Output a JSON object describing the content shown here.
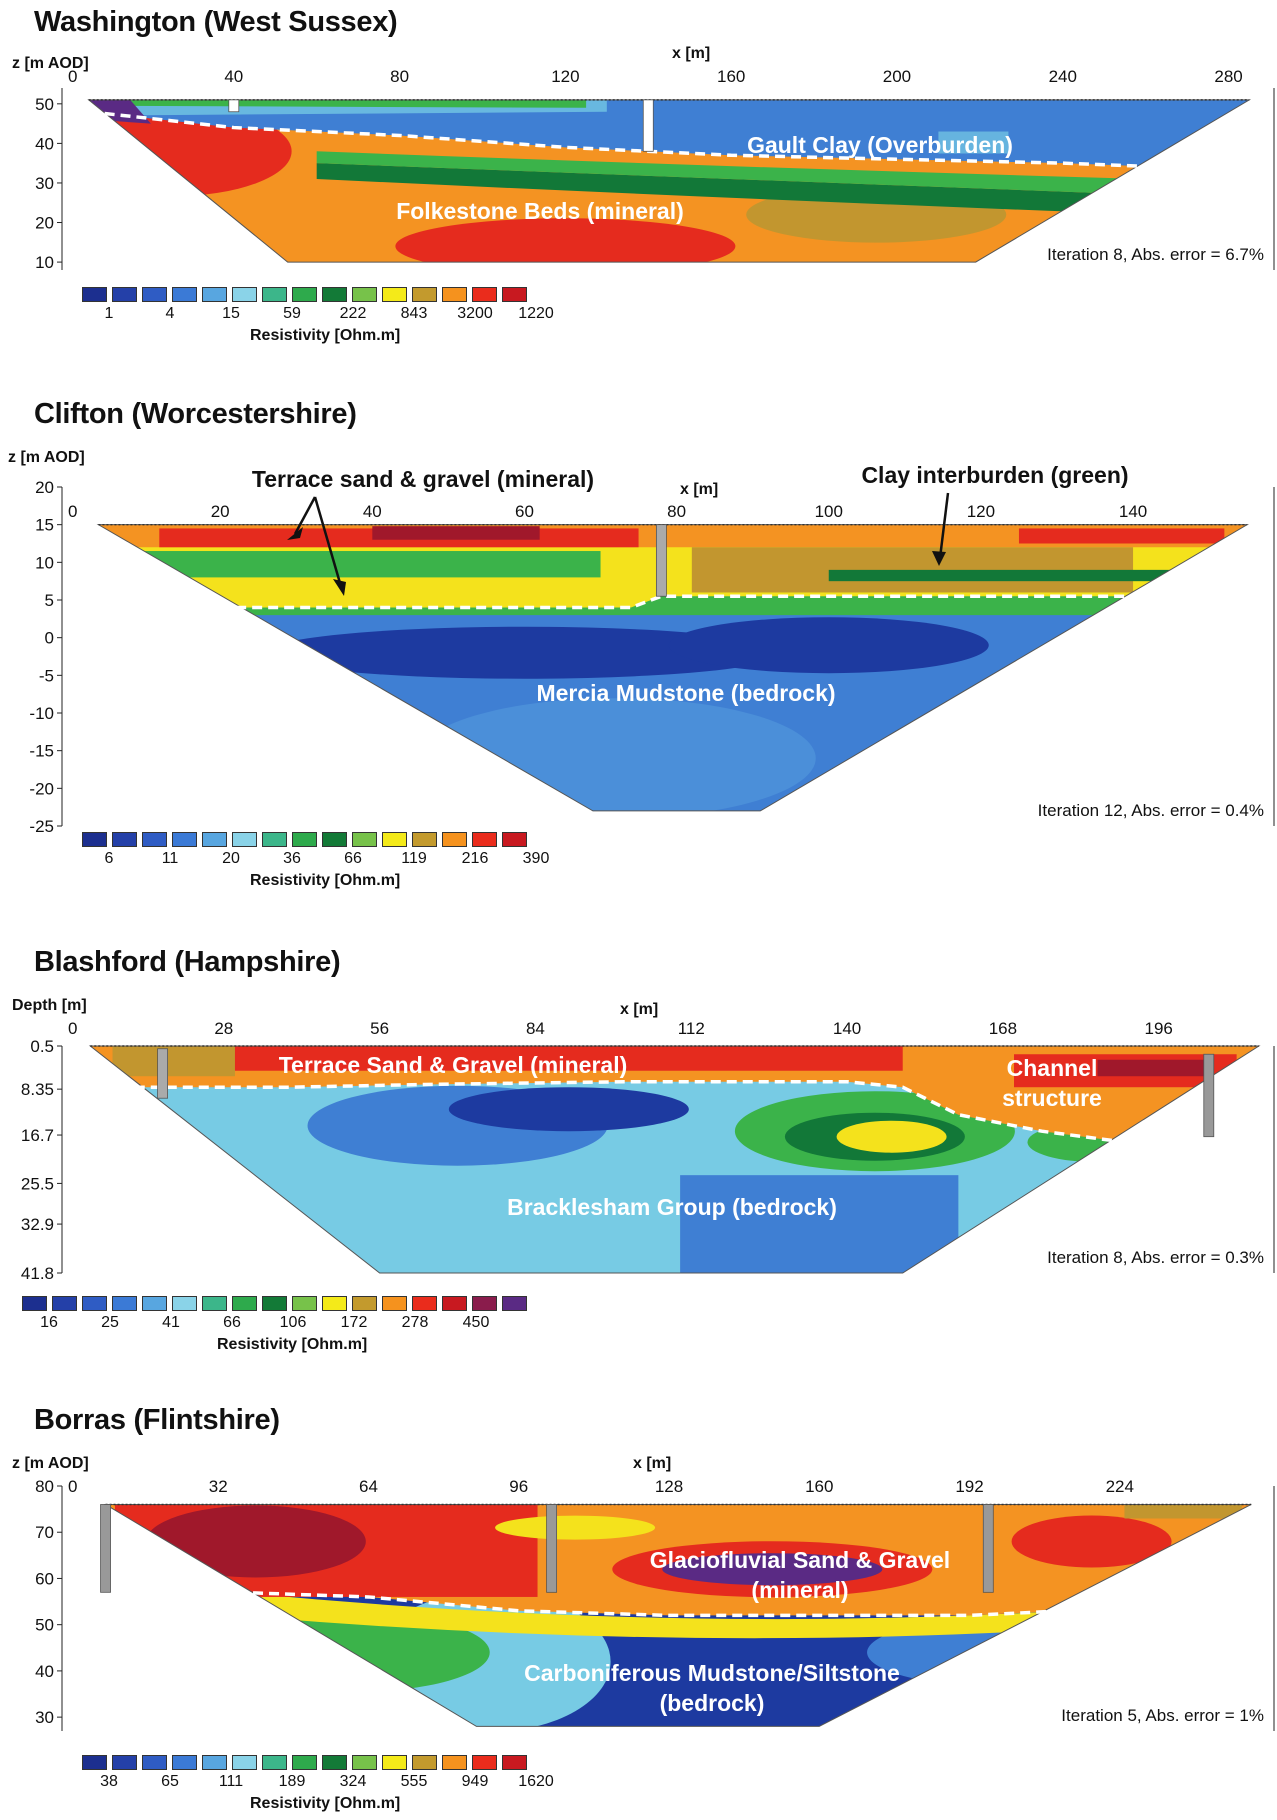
{
  "colors": {
    "palette": [
      "#1c2f8f",
      "#2440a8",
      "#2f5cc4",
      "#3b7ad6",
      "#58a6e0",
      "#8ad3e8",
      "#3cb68a",
      "#2eaa4c",
      "#137a37",
      "#77c24a",
      "#f4ea19",
      "#c39a2d",
      "#f5921e",
      "#ea2c1c",
      "#c81920",
      "#8a1c4c",
      "#5a2a84"
    ],
    "deep_blue": "#1d3aa0",
    "mid_blue": "#3f7fd3",
    "light_blue": "#77cbe4",
    "green": "#3bb34a",
    "dark_green": "#127838",
    "yellow": "#f4e21c",
    "tan": "#c2962f",
    "orange": "#f49322",
    "red": "#e52b1e",
    "dark_red": "#a0182b"
  },
  "chart_data": [
    {
      "type": "heatmap",
      "title": "Washington (West Sussex)",
      "ylabel": "z [m AOD]",
      "xlabel": "x [m]",
      "x_ticks": [
        0,
        40,
        80,
        120,
        160,
        200,
        240,
        280
      ],
      "y_ticks": [
        50,
        40,
        30,
        20,
        10
      ],
      "xlim": [
        0,
        290
      ],
      "ylim": [
        8,
        54
      ],
      "annotations": [
        "Gault Clay (Overburden)",
        "Folkestone Beds (mineral)"
      ],
      "iteration_text": "Iteration 8, Abs. error = 6.7%",
      "legend_labels": [
        "1",
        "4",
        "15",
        "59",
        "222",
        "843",
        "3200",
        "1220"
      ],
      "legend_title": "Resistivity [Ohm.m]",
      "section": {
        "x_min": 5,
        "x_max": 285,
        "x_bottom_left": 53,
        "x_bottom_right": 219,
        "z_top": 51,
        "z_bottom": 10
      },
      "layers": [
        {
          "name": "overburden",
          "x": [
            5,
            40,
            80,
            120,
            160,
            200,
            240,
            265
          ],
          "z_base": [
            48,
            44,
            42,
            39,
            37,
            36,
            35,
            34
          ]
        }
      ]
    },
    {
      "type": "heatmap",
      "title": "Clifton (Worcestershire)",
      "ylabel": "z [m AOD]",
      "xlabel": "x [m]",
      "x_ticks": [
        0,
        20,
        40,
        60,
        80,
        100,
        120,
        140
      ],
      "y_ticks": [
        20,
        15,
        10,
        5,
        0,
        -5,
        -10,
        -15,
        -20,
        -25
      ],
      "xlim": [
        0,
        158
      ],
      "ylim": [
        -25,
        20
      ],
      "annotations": [
        "Terrace sand & gravel (mineral)",
        "Clay interburden (green)",
        "Mercia Mudstone (bedrock)"
      ],
      "iteration_text": "Iteration 12, Abs. error = 0.4%",
      "legend_labels": [
        "6",
        "11",
        "20",
        "36",
        "66",
        "119",
        "216",
        "390"
      ],
      "legend_title": "Resistivity [Ohm.m]",
      "section": {
        "x_min": 4,
        "x_max": 155,
        "x_bottom_left": 69,
        "x_bottom_right": 91,
        "z_top": 15,
        "z_bottom": -23
      },
      "layers": [
        {
          "name": "mineral_base",
          "x": [
            20,
            40,
            60,
            74,
            78,
            100,
            120,
            140,
            150
          ],
          "z_base": [
            4,
            4,
            4,
            4,
            5.5,
            5.5,
            5.5,
            5.5,
            5.5
          ]
        }
      ]
    },
    {
      "type": "heatmap",
      "title": "Blashford (Hampshire)",
      "ylabel": "Depth [m]",
      "xlabel": "x [m]",
      "x_ticks": [
        0,
        28,
        56,
        84,
        112,
        140,
        168,
        196
      ],
      "y_ticks": [
        "0.5",
        "8.35",
        "16.7",
        "25.5",
        "32.9",
        "41.8"
      ],
      "xlim": [
        0,
        216
      ],
      "ylim": [
        0.5,
        41.8
      ],
      "annotations": [
        "Terrace Sand & Gravel (mineral)",
        "Channel structure",
        "Bracklesham Group (bedrock)"
      ],
      "iteration_text": "Iteration 8, Abs. error = 0.3%",
      "legend_labels": [
        "16",
        "25",
        "41",
        "66",
        "106",
        "172",
        "278",
        "450"
      ],
      "legend_title": "Resistivity [Ohm.m]",
      "section": {
        "x_min": 4,
        "x_max": 214,
        "x_bottom_left": 56,
        "x_bottom_right": 150,
        "depth_top": 0.5,
        "depth_bottom": 41.8
      },
      "layers": [
        {
          "name": "mineral_base",
          "x": [
            12,
            40,
            64,
            100,
            140,
            150,
            160,
            175,
            190
          ],
          "z_base": [
            8,
            8,
            7.5,
            7,
            7,
            8,
            13,
            16,
            18
          ]
        }
      ]
    },
    {
      "type": "heatmap",
      "title": "Borras (Flintshire)",
      "ylabel": "z [m AOD]",
      "xlabel": "x [m]",
      "x_ticks": [
        0,
        32,
        64,
        96,
        128,
        160,
        192,
        224
      ],
      "y_ticks": [
        80,
        70,
        60,
        50,
        40,
        30
      ],
      "xlim": [
        0,
        256
      ],
      "ylim": [
        27,
        80
      ],
      "annotations": [
        "Glaciofluvial Sand & Gravel (mineral)",
        "Carboniferous Mudstone/Siltstone (bedrock)"
      ],
      "annotation_lines": [
        [
          "Glaciofluvial Sand & Gravel",
          "(mineral)"
        ],
        [
          "Carboniferous Mudstone/Siltstone",
          "(bedrock)"
        ]
      ],
      "iteration_text": "Iteration 5, Abs. error = 1%",
      "legend_labels": [
        "38",
        "65",
        "111",
        "189",
        "324",
        "555",
        "949",
        "1620"
      ],
      "legend_title": "Resistivity [Ohm.m]",
      "section": {
        "x_min": 8,
        "x_max": 252,
        "x_bottom_left": 87,
        "x_bottom_right": 160,
        "z_top": 76,
        "z_bottom": 28
      },
      "layers": [
        {
          "name": "mineral_base",
          "x": [
            36,
            64,
            96,
            128,
            160,
            192,
            212
          ],
          "z_base": [
            57,
            56,
            53,
            52,
            52,
            52,
            53
          ]
        }
      ]
    }
  ],
  "labels": {
    "panel1": {
      "title": "Washington (West Sussex)",
      "ylabel": "z [m AOD]",
      "xlabel": "x [m]"
    },
    "panel2": {
      "title": "Clifton (Worcestershire)",
      "ylabel": "z [m AOD]",
      "xlabel": "x [m]"
    },
    "panel3": {
      "title": "Blashford (Hampshire)",
      "ylabel": "Depth [m]",
      "xlabel": "x [m]"
    },
    "panel4": {
      "title": "Borras (Flintshire)",
      "ylabel": "z [m AOD]",
      "xlabel": "x [m]"
    }
  }
}
